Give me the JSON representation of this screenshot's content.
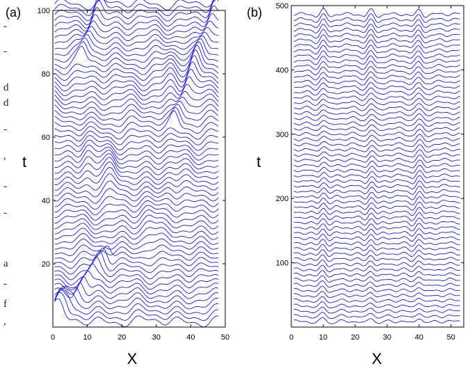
{
  "colors": {
    "trace": "#1a1adf",
    "frame": "#000000",
    "background": "#ffffff"
  },
  "side_text": [
    "-",
    "-",
    "d",
    "d",
    "-",
    ",",
    "-",
    "-",
    "a",
    "-",
    "f",
    ","
  ],
  "chart_data": [
    {
      "type": "line",
      "panel_label": "(a)",
      "xlabel": "X",
      "ylabel": "t",
      "xlim": [
        0,
        50
      ],
      "ylim": [
        0,
        100
      ],
      "xticks": [
        0,
        10,
        20,
        30,
        40,
        50
      ],
      "yticks": [
        20,
        40,
        60,
        80,
        100
      ],
      "grid": false,
      "trace_count": 60,
      "t_step": 1.7,
      "amplitude": 3.5,
      "features": [
        {
          "kind": "moving-front",
          "t_range": [
            0,
            22
          ],
          "x_at_start": 2,
          "x_at_end": 17
        },
        {
          "kind": "moving-front",
          "t_range": [
            0,
            8
          ],
          "x_at_start": 0,
          "x_at_end": 5
        },
        {
          "kind": "defect",
          "x": 10,
          "t": 50
        },
        {
          "kind": "defect",
          "x": 17,
          "t": 45
        },
        {
          "kind": "defect",
          "x": 28,
          "t": 28
        },
        {
          "kind": "defect",
          "x": 34,
          "t": 40
        },
        {
          "kind": "defect",
          "x": 34,
          "t": 77
        },
        {
          "kind": "moving-front",
          "t_range": [
            60,
            100
          ],
          "x_at_start": 35,
          "x_at_end": 48
        },
        {
          "kind": "moving-front",
          "t_range": [
            80,
            100
          ],
          "x_at_start": 8,
          "x_at_end": 14
        }
      ]
    },
    {
      "type": "line",
      "panel_label": "(b)",
      "xlabel": "X",
      "ylabel": "t",
      "xlim": [
        0,
        54
      ],
      "ylim": [
        0,
        500
      ],
      "xticks": [
        0,
        10,
        20,
        30,
        40,
        50
      ],
      "yticks": [
        100,
        200,
        300,
        400,
        500
      ],
      "grid": false,
      "trace_count": 60,
      "t_step": 8.1,
      "amplitude": 16,
      "features": [
        {
          "kind": "stationary-dip",
          "x": 10
        },
        {
          "kind": "stationary-dip",
          "x": 25
        },
        {
          "kind": "stationary-dip",
          "x": 40
        }
      ]
    }
  ]
}
